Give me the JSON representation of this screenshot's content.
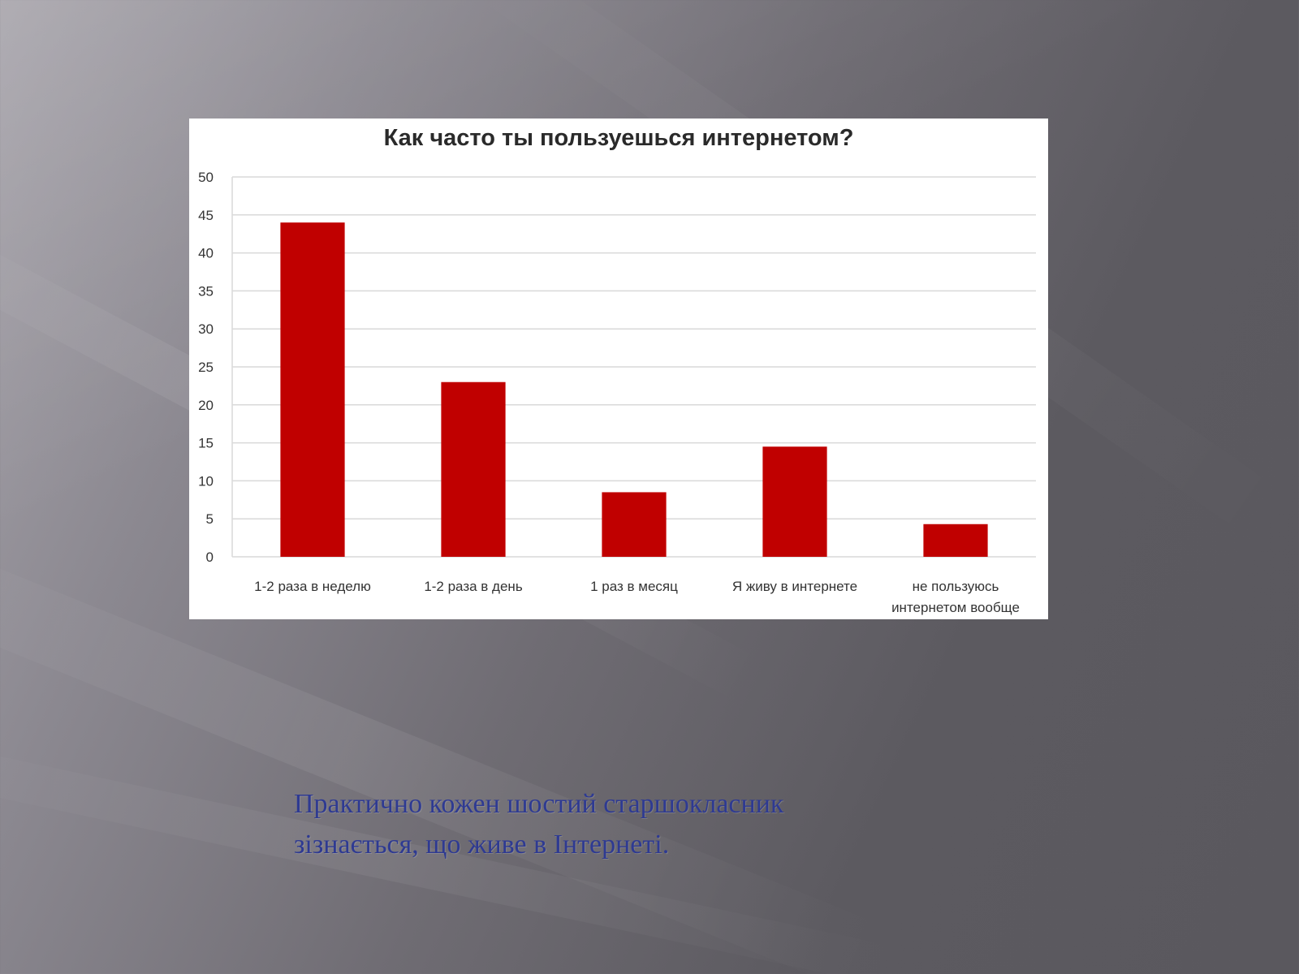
{
  "colors": {
    "bar": "#c00000",
    "grid": "#d9d9d9",
    "caption": "#2e3a92"
  },
  "caption": {
    "line1": "Практично кожен шостий старшокласник",
    "line2": "зізнається, що живе в Інтернеті."
  },
  "chart_data": {
    "type": "bar",
    "title": "Как часто ты пользуешься интернетом?",
    "categories": [
      [
        "1-2 раза в неделю"
      ],
      [
        "1-2 раза в день"
      ],
      [
        "1 раз в месяц"
      ],
      [
        "Я живу в интернете"
      ],
      [
        "не пользуюсь",
        "интернетом вообще"
      ]
    ],
    "values": [
      44,
      23,
      8.5,
      14.5,
      4.3
    ],
    "ylim": [
      0,
      50
    ],
    "yticks": [
      0,
      5,
      10,
      15,
      20,
      25,
      30,
      35,
      40,
      45,
      50
    ],
    "grid": true,
    "legend": "none",
    "xlabel": "",
    "ylabel": ""
  }
}
